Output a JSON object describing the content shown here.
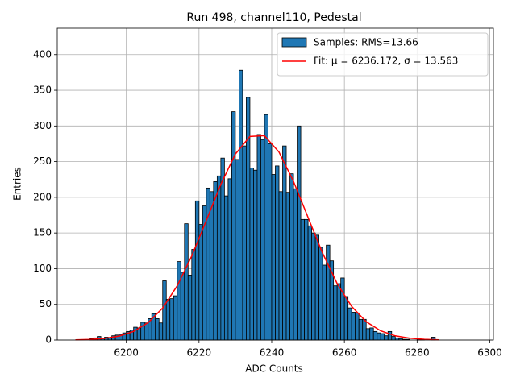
{
  "chart_data": {
    "type": "histogram",
    "title": "Run 498, channel110, Pedestal",
    "xlabel": "ADC Counts",
    "ylabel": "Entries",
    "grid": true,
    "legend": "upper right",
    "xlim": [
      6181,
      6301
    ],
    "ylim": [
      0,
      437
    ],
    "xticks": [
      6200,
      6220,
      6240,
      6260,
      6280,
      6300
    ],
    "yticks": [
      0,
      50,
      100,
      150,
      200,
      250,
      300,
      350,
      400
    ],
    "histogram": {
      "name": "Samples: RMS=13.66",
      "color": "#1f77b4",
      "edgecolor": "#000000",
      "bins": [
        6186,
        6187,
        6188,
        6189,
        6190,
        6191,
        6192,
        6193,
        6194,
        6195,
        6196,
        6197,
        6198,
        6199,
        6200,
        6201,
        6202,
        6203,
        6204,
        6205,
        6206,
        6207,
        6208,
        6209,
        6210,
        6211,
        6212,
        6213,
        6214,
        6215,
        6216,
        6217,
        6218,
        6219,
        6220,
        6221,
        6222,
        6223,
        6224,
        6225,
        6226,
        6227,
        6228,
        6229,
        6230,
        6231,
        6232,
        6233,
        6234,
        6235,
        6236,
        6237,
        6238,
        6239,
        6240,
        6241,
        6242,
        6243,
        6244,
        6245,
        6246,
        6247,
        6248,
        6249,
        6250,
        6251,
        6252,
        6253,
        6254,
        6255,
        6256,
        6257,
        6258,
        6259,
        6260,
        6261,
        6262,
        6263,
        6264,
        6265,
        6266,
        6267,
        6268,
        6269,
        6270,
        6271,
        6272,
        6273,
        6274,
        6275,
        6276,
        6277,
        6278,
        6279,
        6280,
        6281,
        6282,
        6283,
        6284,
        6285,
        6286
      ],
      "counts": [
        0,
        0,
        0,
        0,
        2,
        3,
        5,
        2,
        4,
        3,
        6,
        7,
        8,
        10,
        12,
        14,
        18,
        17,
        25,
        24,
        30,
        37,
        30,
        24,
        83,
        57,
        58,
        62,
        110,
        95,
        163,
        91,
        127,
        195,
        162,
        188,
        213,
        208,
        222,
        230,
        255,
        202,
        226,
        320,
        253,
        378,
        272,
        340,
        241,
        238,
        288,
        281,
        316,
        275,
        232,
        244,
        208,
        272,
        207,
        233,
        212,
        300,
        169,
        169,
        160,
        150,
        147,
        130,
        105,
        133,
        111,
        76,
        79,
        87,
        61,
        45,
        39,
        38,
        29,
        29,
        16,
        17,
        12,
        10,
        9,
        6,
        12,
        5,
        3,
        2,
        1,
        1,
        0,
        0,
        2,
        1,
        0,
        0,
        4,
        0
      ]
    },
    "fit": {
      "name": "Fit: μ = 6236.172, σ = 13.563",
      "color": "#ff0000",
      "x": [
        6186,
        6190,
        6194,
        6198,
        6202,
        6206,
        6210,
        6214,
        6218,
        6222,
        6226,
        6230,
        6234,
        6238,
        6242,
        6246,
        6250,
        6254,
        6258,
        6262,
        6266,
        6270,
        6274,
        6278,
        6282,
        6286
      ],
      "values": [
        0.3,
        0.9,
        2.3,
        5.5,
        12.1,
        24.4,
        44.9,
        76.0,
        117.8,
        167.4,
        218.2,
        260.6,
        285.3,
        286.4,
        263.5,
        222.3,
        171.8,
        121.8,
        79.2,
        47.1,
        25.7,
        12.9,
        5.9,
        2.5,
        1.0,
        0.3
      ]
    }
  }
}
